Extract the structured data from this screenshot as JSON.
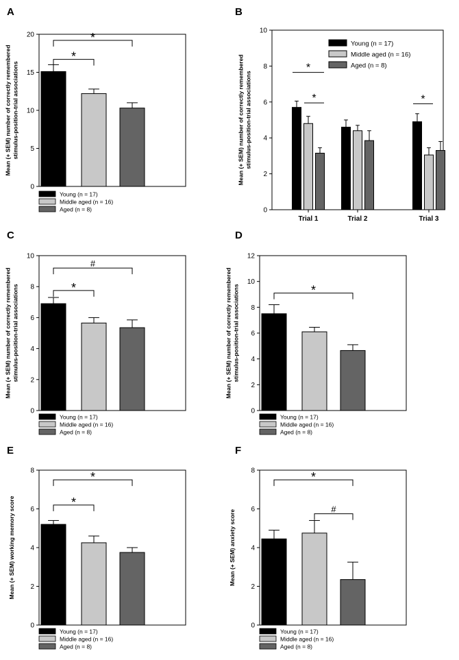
{
  "figure": {
    "title": "Six-panel bar chart figure (A–F)"
  },
  "colors": {
    "young": "#000000",
    "middle": "#c8c8c8",
    "aged": "#646464",
    "axis": "#000000"
  },
  "chart_data": [
    {
      "panel": "A",
      "type": "bar",
      "ylabel_lines": [
        "Mean (+ SEM) number of correctly remembered",
        "stimulus-position-trial associations"
      ],
      "ylim": [
        0,
        20
      ],
      "yticks": [
        "0",
        "5",
        "10",
        "15",
        "20"
      ],
      "categories": [
        "Young (n = 17)",
        "Middle aged (n = 16)",
        "Aged (n = 8)"
      ],
      "values": [
        15.1,
        12.2,
        10.3
      ],
      "errors": [
        0.9,
        0.6,
        0.7
      ],
      "legend": [
        "Young (n = 17)",
        "Middle aged (n = 16)",
        "Aged (n = 8)"
      ],
      "annotations": [
        {
          "from": 0,
          "to": 1,
          "y": 16.7,
          "label": "*"
        },
        {
          "from": 0,
          "to": 2,
          "y": 19.2,
          "label": "*"
        }
      ]
    },
    {
      "panel": "B",
      "type": "bar",
      "ylabel_lines": [
        "Mean (+ SEM) number of correctly remembered",
        "stimulus-position-trial associations"
      ],
      "ylim": [
        0,
        10
      ],
      "yticks": [
        "0",
        "2",
        "4",
        "6",
        "8",
        "10"
      ],
      "categories": [
        "Trial 1",
        "Trial 2",
        "Trial 3"
      ],
      "series": [
        {
          "name": "Young (n = 17)",
          "values": [
            5.7,
            4.6,
            4.9
          ],
          "errors": [
            0.35,
            0.4,
            0.45
          ]
        },
        {
          "name": "Middle aged (n = 16)",
          "values": [
            4.8,
            4.4,
            3.05
          ],
          "errors": [
            0.4,
            0.3,
            0.4
          ]
        },
        {
          "name": "Aged (n = 8)",
          "values": [
            3.15,
            3.85,
            3.3
          ],
          "errors": [
            0.3,
            0.55,
            0.5
          ]
        }
      ],
      "legend": [
        "Young (n = 17)",
        "Middle aged (n = 16)",
        "Aged (n = 8)"
      ],
      "legend_position": "top-right",
      "annotations": [
        {
          "group": 0,
          "from": 0,
          "to": 2,
          "y": 7.65,
          "label": "*"
        },
        {
          "group": 0,
          "from": 1,
          "to": 2,
          "y": 5.95,
          "label": "*"
        },
        {
          "group": 2,
          "from": 0,
          "to": 1,
          "y": 5.9,
          "label": "*"
        }
      ]
    },
    {
      "panel": "C",
      "type": "bar",
      "ylabel_lines": [
        "Mean (+ SEM) number of correctly remembered",
        "stimulus-position-trial associations"
      ],
      "ylim": [
        0,
        10
      ],
      "yticks": [
        "0",
        "2",
        "4",
        "6",
        "8",
        "10"
      ],
      "categories": [
        "Young (n = 17)",
        "Middle aged (n = 16)",
        "Aged (n = 8)"
      ],
      "values": [
        6.9,
        5.65,
        5.35
      ],
      "errors": [
        0.4,
        0.35,
        0.5
      ],
      "legend": [
        "Young (n = 17)",
        "Middle aged (n = 16)",
        "Aged (n = 8)"
      ],
      "annotations": [
        {
          "from": 0,
          "to": 1,
          "y": 7.75,
          "label": "*"
        },
        {
          "from": 0,
          "to": 2,
          "y": 9.2,
          "label": "#"
        }
      ]
    },
    {
      "panel": "D",
      "type": "bar",
      "ylabel_lines": [
        "Mean (+ SEM) number of correctly remembered",
        "stimulus-position-trial associations"
      ],
      "ylim": [
        0,
        12
      ],
      "yticks": [
        "0",
        "2",
        "4",
        "6",
        "8",
        "10",
        "12"
      ],
      "categories": [
        "Young (n = 17)",
        "Middle aged (n = 16)",
        "Aged (n = 8)"
      ],
      "values": [
        7.5,
        6.1,
        4.65
      ],
      "errors": [
        0.7,
        0.35,
        0.45
      ],
      "legend": [
        "Young (n = 17)",
        "Middle aged (n = 16)",
        "Aged (n = 8)"
      ],
      "annotations": [
        {
          "from": 0,
          "to": 2,
          "y": 9.1,
          "label": "*"
        }
      ]
    },
    {
      "panel": "E",
      "type": "bar",
      "ylabel_lines": [
        "Mean (+ SEM) working memory score"
      ],
      "ylim": [
        0,
        8
      ],
      "yticks": [
        "0",
        "2",
        "4",
        "6",
        "8"
      ],
      "categories": [
        "Young (n = 17)",
        "Middle aged (n = 16)",
        "Aged (n = 8)"
      ],
      "values": [
        5.2,
        4.25,
        3.75
      ],
      "errors": [
        0.2,
        0.35,
        0.25
      ],
      "legend": [
        "Young (n = 17)",
        "Middle aged (n = 16)",
        "Aged (n = 8)"
      ],
      "annotations": [
        {
          "from": 0,
          "to": 1,
          "y": 6.2,
          "label": "*"
        },
        {
          "from": 0,
          "to": 2,
          "y": 7.5,
          "label": "*"
        }
      ]
    },
    {
      "panel": "F",
      "type": "bar",
      "ylabel_lines": [
        "Mean (+ SEM) anxiety score"
      ],
      "ylim": [
        0,
        8
      ],
      "yticks": [
        "0",
        "2",
        "4",
        "6",
        "8"
      ],
      "categories": [
        "Young (n = 17)",
        "Middle aged (n = 16)",
        "Aged (n = 8)"
      ],
      "values": [
        4.45,
        4.75,
        2.35
      ],
      "errors": [
        0.45,
        0.65,
        0.9
      ],
      "legend": [
        "Young (n = 17)",
        "Middle aged (n = 16)",
        "Aged (n = 8)"
      ],
      "annotations": [
        {
          "from": 1,
          "to": 2,
          "y": 5.75,
          "label": "#"
        },
        {
          "from": 0,
          "to": 2,
          "y": 7.5,
          "label": "*"
        }
      ]
    }
  ]
}
